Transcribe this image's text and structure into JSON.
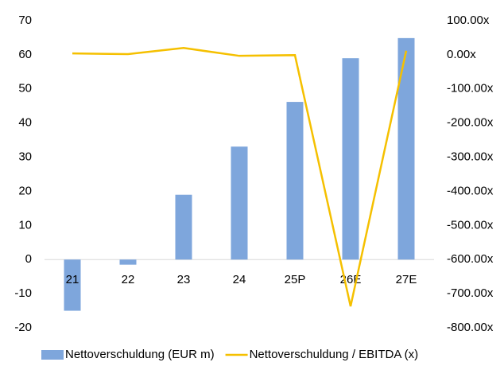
{
  "chart_data": {
    "type": "bar-line",
    "categories": [
      "21",
      "22",
      "23",
      "24",
      "25P",
      "26E",
      "27E"
    ],
    "series": [
      {
        "name": "Nettoverschuldung (EUR m)",
        "type": "bar",
        "color": "#7ea6dc",
        "values": [
          -15,
          -1.5,
          19,
          33.1,
          46.2,
          59,
          64.9
        ]
      },
      {
        "name": "Nettoverschuldung / EBITDA (x)",
        "type": "line",
        "axis": "y2",
        "color": "#f5c000",
        "values": [
          4,
          2,
          20,
          -3,
          -1,
          -737,
          12
        ]
      }
    ],
    "ylim": [
      -20,
      70
    ],
    "yticks": [
      -20,
      -10,
      0,
      10,
      20,
      30,
      40,
      50,
      60,
      70
    ],
    "y2lim": [
      -800,
      100
    ],
    "y2ticks": [
      {
        "value": -800,
        "label": "-800.00x"
      },
      {
        "value": -700,
        "label": "-700.00x"
      },
      {
        "value": -600,
        "label": "-600.00x"
      },
      {
        "value": -500,
        "label": "-500.00x"
      },
      {
        "value": -400,
        "label": "-400.00x"
      },
      {
        "value": -300,
        "label": "-300.00x"
      },
      {
        "value": -200,
        "label": "-200.00x"
      },
      {
        "value": -100,
        "label": "-100.00x"
      },
      {
        "value": 0,
        "label": "0.00x"
      },
      {
        "value": 100,
        "label": "100.00x"
      }
    ],
    "legend": "bottom",
    "grid": false
  }
}
